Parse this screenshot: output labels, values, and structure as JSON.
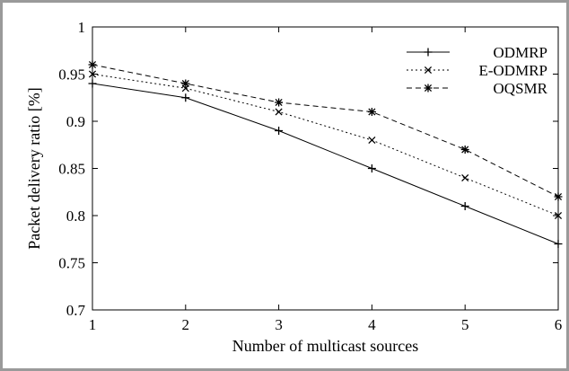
{
  "chart_data": {
    "type": "line",
    "title": "",
    "xlabel": "Number of multicast sources",
    "ylabel": "Packet delivery ratio [%]",
    "x": [
      1,
      2,
      3,
      4,
      5,
      6
    ],
    "xlim": [
      1,
      6
    ],
    "ylim": [
      0.7,
      1.0
    ],
    "xticks": [
      "1",
      "2",
      "3",
      "4",
      "5",
      "6"
    ],
    "yticks": [
      "0.7",
      "0.75",
      "0.8",
      "0.85",
      "0.9",
      "0.95",
      "1"
    ],
    "grid": false,
    "legend_position": "top-right",
    "series": [
      {
        "name": "ODMRP",
        "values": [
          0.94,
          0.925,
          0.89,
          0.85,
          0.81,
          0.77
        ],
        "line_style": "solid",
        "marker": "plus"
      },
      {
        "name": "E-ODMRP",
        "values": [
          0.95,
          0.935,
          0.91,
          0.88,
          0.84,
          0.8
        ],
        "line_style": "dotted",
        "marker": "cross"
      },
      {
        "name": "OQSMR",
        "values": [
          0.96,
          0.94,
          0.92,
          0.91,
          0.87,
          0.82
        ],
        "line_style": "dashed",
        "marker": "star"
      }
    ]
  }
}
